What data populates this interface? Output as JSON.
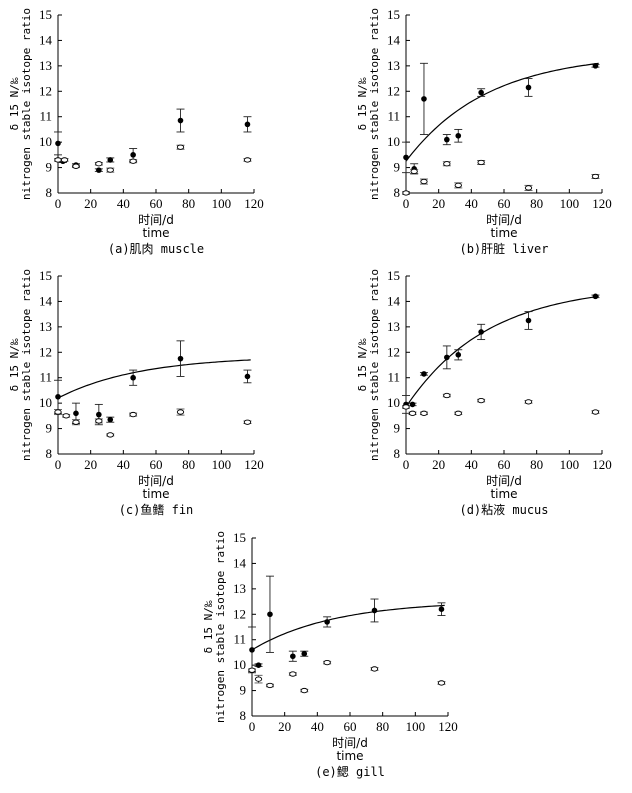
{
  "chart_data": [
    {
      "type": "scatter",
      "panel_id": "a",
      "caption": "(a)肌肉 muscle",
      "xlabel_cn": "时间/d",
      "xlabel_en": "time",
      "ylabel_symbol": "δ 15 N/‰",
      "ylabel_text": "nitrogen stable isotope ratio",
      "xlim": [
        0,
        120
      ],
      "ylim": [
        8,
        15
      ],
      "xticks": [
        0,
        20,
        40,
        60,
        80,
        100,
        120
      ],
      "yticks": [
        8,
        9,
        10,
        11,
        12,
        13,
        14,
        15
      ],
      "series": [
        {
          "name": "filled",
          "marker": "filled",
          "points": [
            [
              0,
              9.95,
              0.45
            ],
            [
              3,
              9.25,
              0.05
            ],
            [
              11,
              9.1,
              0.05
            ],
            [
              25,
              8.9,
              0.05
            ],
            [
              32,
              9.3,
              0.08
            ],
            [
              46,
              9.5,
              0.25
            ],
            [
              75,
              10.85,
              0.45
            ],
            [
              116,
              10.7,
              0.3
            ]
          ]
        },
        {
          "name": "open",
          "marker": "open",
          "points": [
            [
              0,
              9.3,
              0.05
            ],
            [
              4,
              9.3,
              0.05
            ],
            [
              11,
              9.05,
              0.05
            ],
            [
              25,
              9.15,
              0.05
            ],
            [
              32,
              8.9,
              0.08
            ],
            [
              46,
              9.25,
              0.06
            ],
            [
              75,
              9.8,
              0.08
            ],
            [
              116,
              9.3,
              0.05
            ]
          ]
        }
      ],
      "fit": null
    },
    {
      "type": "scatter",
      "panel_id": "b",
      "caption": "(b)肝脏 liver",
      "xlabel_cn": "时间/d",
      "xlabel_en": "time",
      "ylabel_symbol": "δ 15 N/‰",
      "ylabel_text": "nitrogen stable isotope ratio",
      "xlim": [
        0,
        120
      ],
      "ylim": [
        8,
        15
      ],
      "xticks": [
        0,
        20,
        40,
        60,
        80,
        100,
        120
      ],
      "yticks": [
        8,
        9,
        10,
        11,
        12,
        13,
        14,
        15
      ],
      "series": [
        {
          "name": "filled",
          "marker": "filled",
          "points": [
            [
              0,
              9.4,
              0.6
            ],
            [
              5,
              8.95,
              0.2
            ],
            [
              11,
              11.7,
              1.4
            ],
            [
              25,
              10.1,
              0.2
            ],
            [
              32,
              10.25,
              0.25
            ],
            [
              46,
              11.95,
              0.15
            ],
            [
              75,
              12.15,
              0.35
            ],
            [
              116,
              13.0,
              0.05
            ]
          ]
        },
        {
          "name": "open",
          "marker": "open",
          "points": [
            [
              0,
              8.0,
              0.05
            ],
            [
              5,
              8.85,
              0.08
            ],
            [
              11,
              8.45,
              0.1
            ],
            [
              25,
              9.15,
              0.08
            ],
            [
              32,
              8.3,
              0.1
            ],
            [
              46,
              9.2,
              0.08
            ],
            [
              75,
              8.2,
              0.1
            ],
            [
              116,
              8.65,
              0.08
            ]
          ]
        }
      ],
      "fit": {
        "x0": 0,
        "x1": 118,
        "y0": 9.25,
        "y1": 13.1
      }
    },
    {
      "type": "scatter",
      "panel_id": "c",
      "caption": "(c)鱼鳍 fin",
      "xlabel_cn": "时间/d",
      "xlabel_en": "time",
      "ylabel_symbol": "δ 15 N/‰",
      "ylabel_text": "nitrogen stable isotope ratio",
      "xlim": [
        0,
        120
      ],
      "ylim": [
        8,
        15
      ],
      "xticks": [
        0,
        20,
        40,
        60,
        80,
        100,
        120
      ],
      "yticks": [
        8,
        9,
        10,
        11,
        12,
        13,
        14,
        15
      ],
      "series": [
        {
          "name": "filled",
          "marker": "filled",
          "points": [
            [
              0,
              10.25,
              0.65
            ],
            [
              11,
              9.6,
              0.4
            ],
            [
              25,
              9.55,
              0.4
            ],
            [
              32,
              9.35,
              0.1
            ],
            [
              46,
              11.0,
              0.3
            ],
            [
              75,
              11.75,
              0.7
            ],
            [
              116,
              11.05,
              0.25
            ]
          ]
        },
        {
          "name": "open",
          "marker": "open",
          "points": [
            [
              0,
              9.65,
              0.1
            ],
            [
              5,
              9.5,
              0.05
            ],
            [
              11,
              9.25,
              0.1
            ],
            [
              25,
              9.3,
              0.08
            ],
            [
              32,
              8.75,
              0.04
            ],
            [
              46,
              9.55,
              0.06
            ],
            [
              75,
              9.65,
              0.12
            ],
            [
              116,
              9.25,
              0.05
            ]
          ]
        }
      ],
      "fit": {
        "x0": 0,
        "x1": 118,
        "y0": 10.2,
        "y1": 11.7
      }
    },
    {
      "type": "scatter",
      "panel_id": "d",
      "caption": "(d)粘液 mucus",
      "xlabel_cn": "时间/d",
      "xlabel_en": "time",
      "ylabel_symbol": "δ 15 N/‰",
      "ylabel_text": "nitrogen stable isotope ratio",
      "xlim": [
        0,
        120
      ],
      "ylim": [
        8,
        15
      ],
      "xticks": [
        0,
        20,
        40,
        60,
        80,
        100,
        120
      ],
      "yticks": [
        8,
        9,
        10,
        11,
        12,
        13,
        14,
        15
      ],
      "series": [
        {
          "name": "filled",
          "marker": "filled",
          "points": [
            [
              0,
              9.95,
              0.35
            ],
            [
              4,
              9.95,
              0.05
            ],
            [
              11,
              11.15,
              0.05
            ],
            [
              25,
              11.8,
              0.45
            ],
            [
              32,
              11.9,
              0.2
            ],
            [
              46,
              12.8,
              0.3
            ],
            [
              75,
              13.25,
              0.35
            ],
            [
              116,
              14.2,
              0.05
            ]
          ]
        },
        {
          "name": "open",
          "marker": "open",
          "points": [
            [
              0,
              9.85,
              0.05
            ],
            [
              4,
              9.6,
              0.05
            ],
            [
              11,
              9.6,
              0.05
            ],
            [
              25,
              10.3,
              0.05
            ],
            [
              32,
              9.6,
              0.05
            ],
            [
              46,
              10.1,
              0.05
            ],
            [
              75,
              10.05,
              0.05
            ],
            [
              116,
              9.65,
              0.05
            ]
          ]
        }
      ],
      "fit": {
        "x0": 0,
        "x1": 118,
        "y0": 9.85,
        "y1": 14.2
      }
    },
    {
      "type": "scatter",
      "panel_id": "e",
      "caption": "(e)鳃 gill",
      "xlabel_cn": "时间/d",
      "xlabel_en": "time",
      "ylabel_symbol": "δ 15 N/‰",
      "ylabel_text": "nitrogen stable isotope ratio",
      "xlim": [
        0,
        120
      ],
      "ylim": [
        8,
        15
      ],
      "xticks": [
        0,
        20,
        40,
        60,
        80,
        100,
        120
      ],
      "yticks": [
        8,
        9,
        10,
        11,
        12,
        13,
        14,
        15
      ],
      "series": [
        {
          "name": "filled",
          "marker": "filled",
          "points": [
            [
              0,
              10.6,
              0.9
            ],
            [
              4,
              10.0,
              0.05
            ],
            [
              11,
              12.0,
              1.5
            ],
            [
              25,
              10.35,
              0.2
            ],
            [
              32,
              10.45,
              0.1
            ],
            [
              46,
              11.7,
              0.2
            ],
            [
              75,
              12.15,
              0.45
            ],
            [
              116,
              12.2,
              0.25
            ]
          ]
        },
        {
          "name": "open",
          "marker": "open",
          "points": [
            [
              0,
              9.8,
              0.05
            ],
            [
              4,
              9.45,
              0.15
            ],
            [
              11,
              9.2,
              0.05
            ],
            [
              25,
              9.65,
              0.05
            ],
            [
              32,
              9.0,
              0.05
            ],
            [
              46,
              10.1,
              0.05
            ],
            [
              75,
              9.85,
              0.05
            ],
            [
              116,
              9.3,
              0.05
            ]
          ]
        }
      ],
      "fit": {
        "x0": 0,
        "x1": 118,
        "y0": 10.6,
        "y1": 12.35
      }
    }
  ]
}
